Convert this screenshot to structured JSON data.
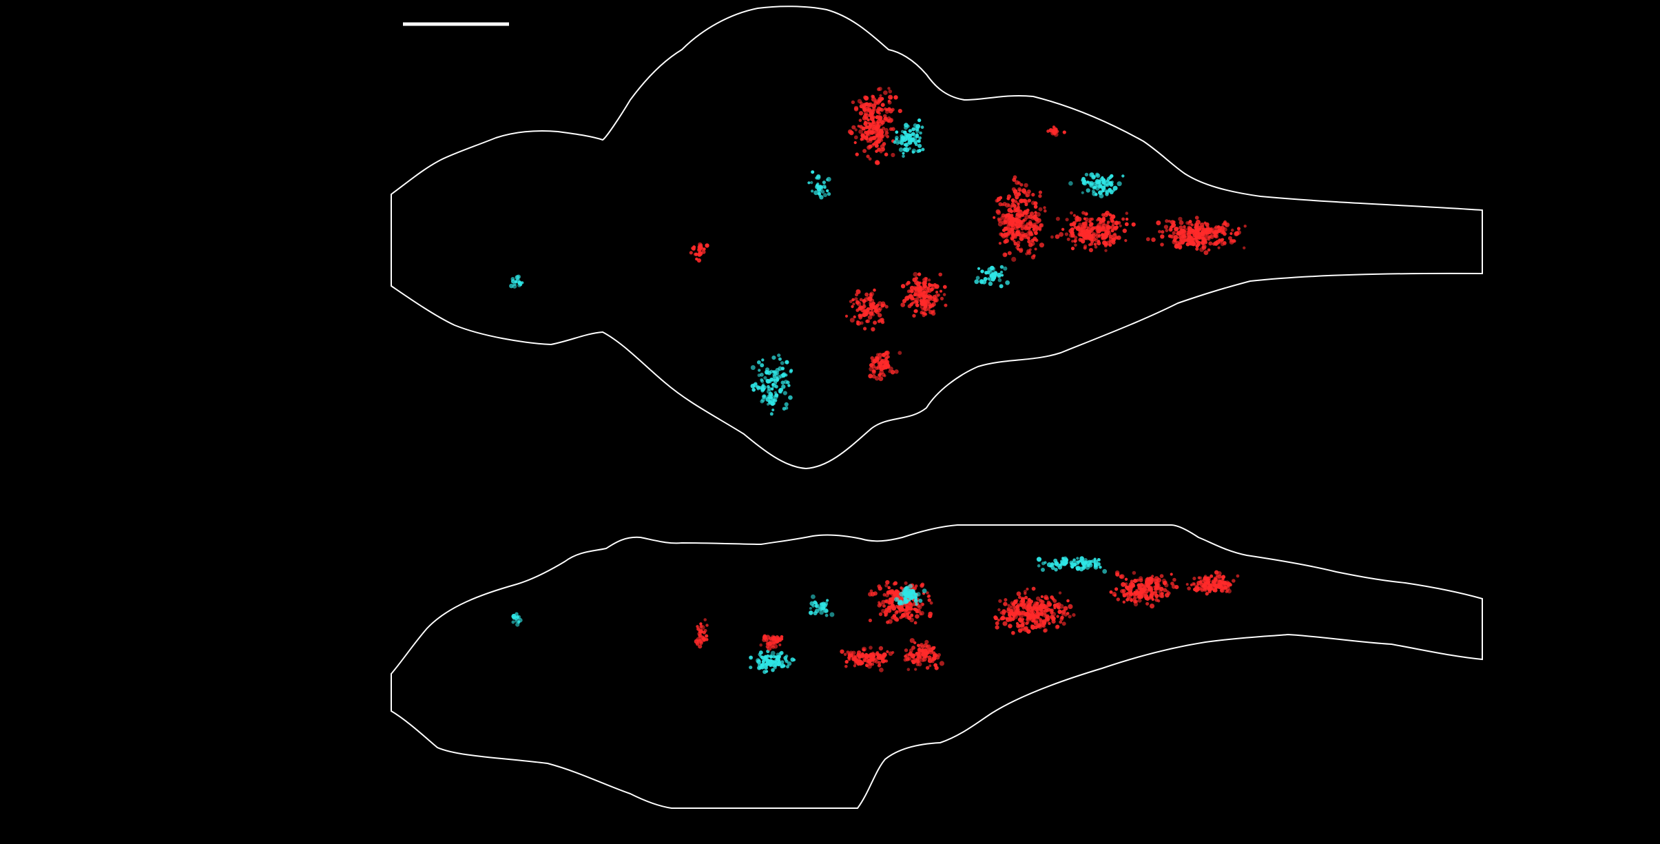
{
  "figure": {
    "background_color": "#000000",
    "outline_color": "#ffffff",
    "scale_bar_color": "#ffffff",
    "markers": [
      {
        "name": "cyan-cells",
        "color": "#2fe6e6"
      },
      {
        "name": "red-cells",
        "color": "#ff2a2a"
      }
    ],
    "views": [
      {
        "name": "dorsal-view"
      },
      {
        "name": "lateral-view"
      }
    ]
  }
}
